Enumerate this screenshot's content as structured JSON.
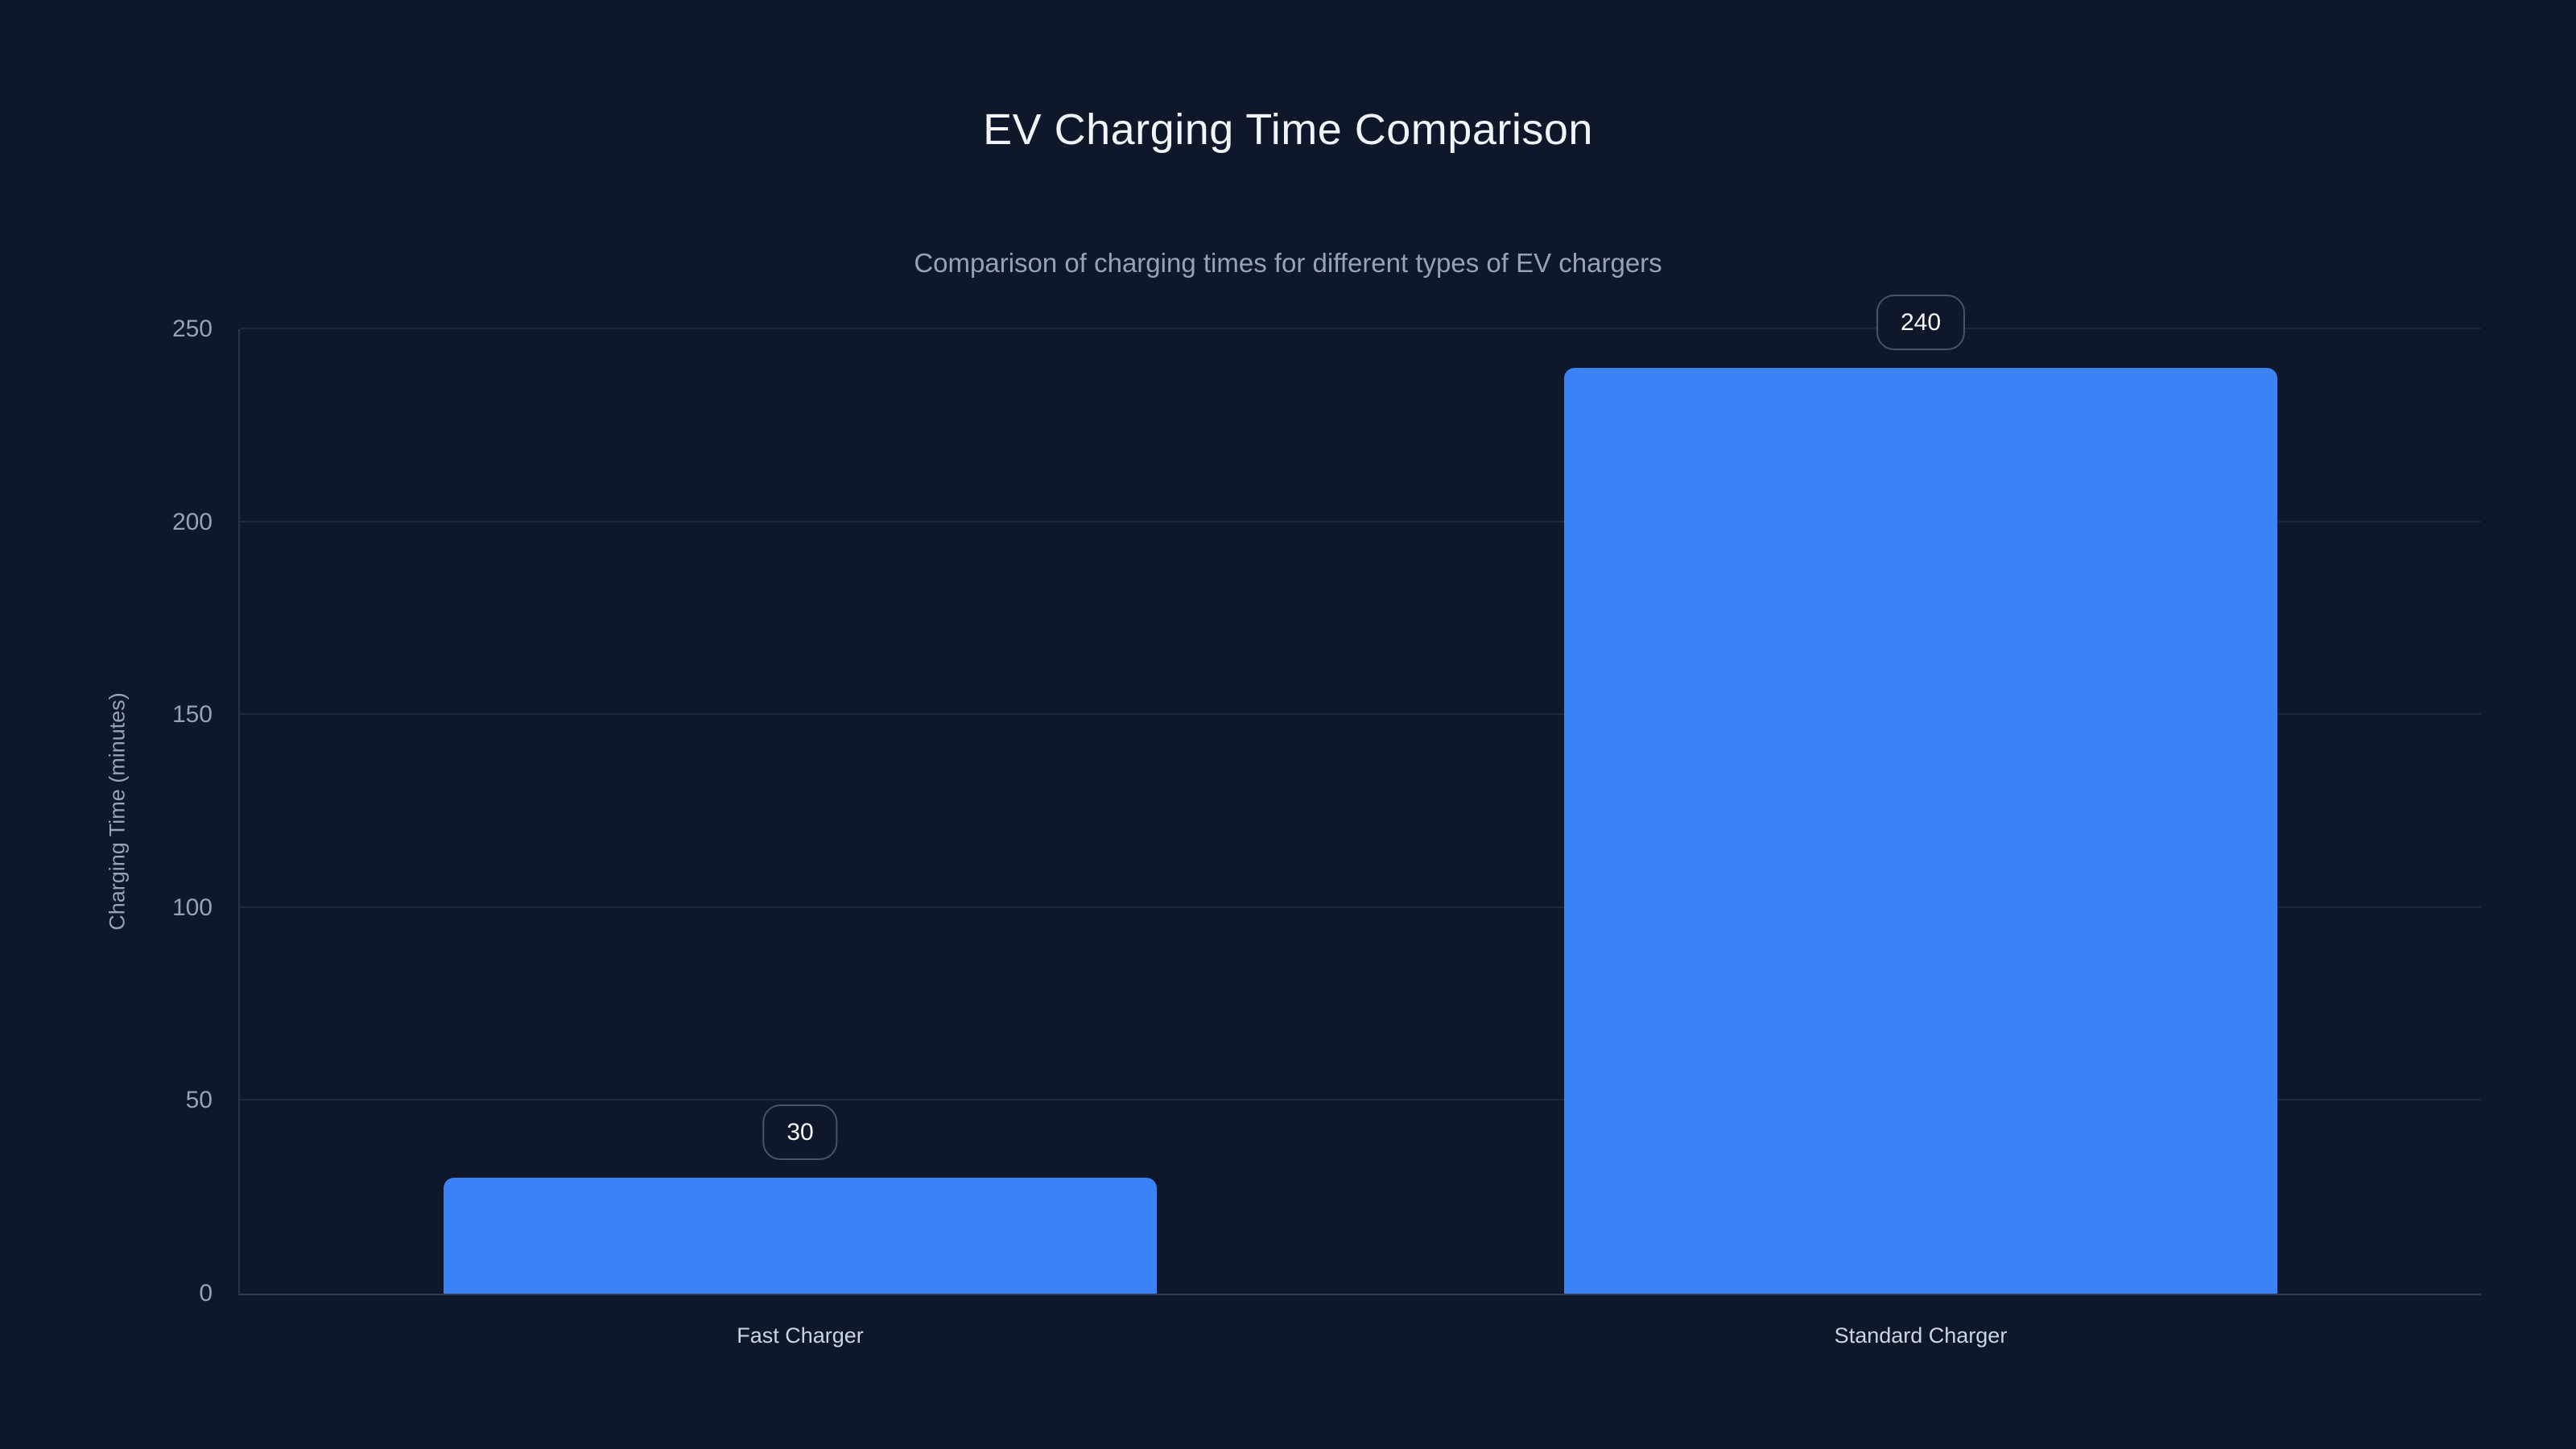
{
  "chart_data": {
    "type": "bar",
    "title": "EV Charging Time Comparison",
    "subtitle": "Comparison of charging times for different types of EV chargers",
    "xlabel": "",
    "ylabel": "Charging Time (minutes)",
    "categories": [
      "Fast Charger",
      "Standard Charger"
    ],
    "values": [
      30,
      240
    ],
    "value_labels": [
      "30",
      "240"
    ],
    "yticks": [
      0,
      50,
      100,
      150,
      200,
      250
    ],
    "ylim": [
      0,
      250
    ],
    "grid": true,
    "legend": false,
    "colors": {
      "background": "#0f172a",
      "bar_fill": "#3b82f6",
      "grid_line": "#1e293b",
      "axis_line_vertical": "#263349",
      "axis_line_horizontal": "#2e3b54",
      "tick_label": "#94a3b8",
      "category_label": "#cbd5e1",
      "title": "#f1f5f9",
      "subtitle": "#94a3b8",
      "badge_background": "#0f172a",
      "badge_border": "#46536b",
      "badge_text": "#f8fafc"
    }
  }
}
